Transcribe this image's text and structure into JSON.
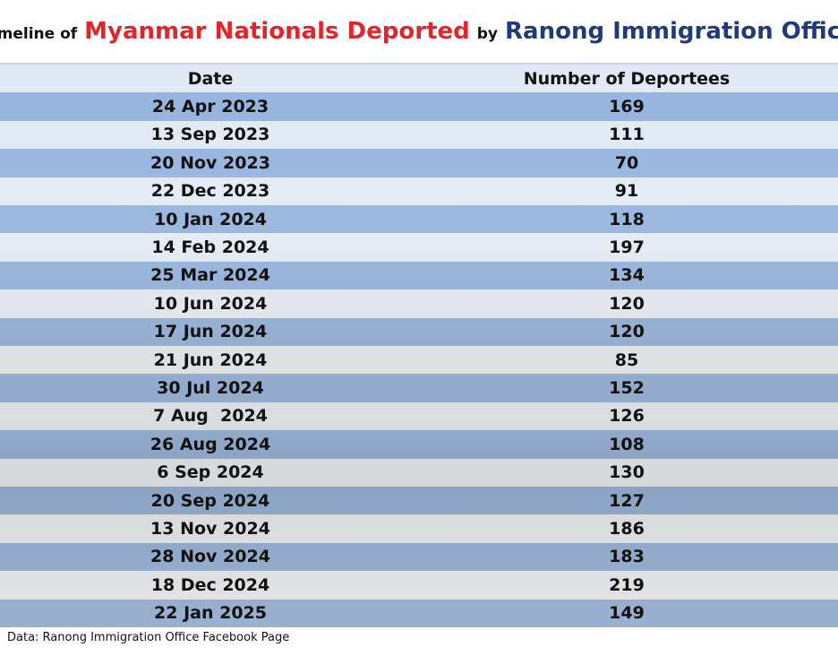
{
  "header": {
    "title_parts": [
      "Timeline of",
      "Myanmar Nationals Deported",
      "by",
      "Ranong Immigration Office"
    ]
  },
  "table": {
    "columns": [
      "Date",
      "Number of Deportees"
    ],
    "rows": [
      [
        "24 Apr 2023",
        "169"
      ],
      [
        "13 Sep 2023",
        "111"
      ],
      [
        "20 Nov 2023",
        "70"
      ],
      [
        "22 Dec 2023",
        "91"
      ],
      [
        "10 Jan 2024",
        "118"
      ],
      [
        "14 Feb 2024",
        "197"
      ],
      [
        "25 Mar 2024",
        "134"
      ],
      [
        "10 Jun 2024",
        "120"
      ],
      [
        "17 Jun 2024",
        "120"
      ],
      [
        "21 Jun 2024",
        "85"
      ],
      [
        "30 Jul 2024",
        "152"
      ],
      [
        "7 Aug  2024",
        "126"
      ],
      [
        "26 Aug 2024",
        "108"
      ],
      [
        "6 Sep 2024",
        "130"
      ],
      [
        "20 Sep 2024",
        "127"
      ],
      [
        "13 Nov 2024",
        "186"
      ],
      [
        "28 Nov 2024",
        "183"
      ],
      [
        "18 Dec 2024",
        "219"
      ],
      [
        "22 Jan 2025",
        "149"
      ]
    ]
  },
  "footer": {
    "source": "Data: Ranong Immigration Office Facebook Page"
  }
}
